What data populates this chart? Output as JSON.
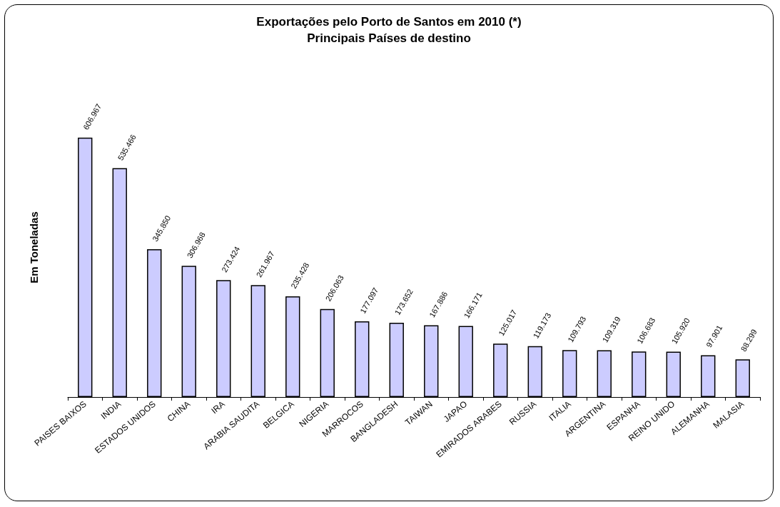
{
  "chart_data": {
    "type": "bar",
    "title": "Exportações pelo Porto de Santos em 2010 (*)",
    "subtitle": "Principais Países de destino",
    "ylabel": "Em Toneladas",
    "categories": [
      "PAISES BAIXOS",
      "INDIA",
      "ESTADOS UNIDOS",
      "CHINA",
      "IRA",
      "ARABIA SAUDITA",
      "BELGICA",
      "NIGERIA",
      "MARROCOS",
      "BANGLADESH",
      "TAIWAN",
      "JAPAO",
      "EMIRADOS ARABES",
      "RUSSIA",
      "ITALIA",
      "ARGENTINA",
      "ESPANHA",
      "REINO UNIDO",
      "ALEMANHA",
      "MALASIA"
    ],
    "values": [
      606967,
      535466,
      345850,
      306968,
      273424,
      261967,
      235428,
      206063,
      177097,
      173652,
      167886,
      166171,
      125017,
      119173,
      109793,
      109319,
      106683,
      105920,
      97901,
      88299
    ],
    "value_labels": [
      "606.967",
      "535.466",
      "345.850",
      "306.968",
      "273.424",
      "261.967",
      "235.428",
      "206.063",
      "177.097",
      "173.652",
      "167.886",
      "166.171",
      "125.017",
      "119.173",
      "109.793",
      "109.319",
      "106.683",
      "105.920",
      "97.901",
      "88.299"
    ],
    "color": "#ccccff"
  }
}
